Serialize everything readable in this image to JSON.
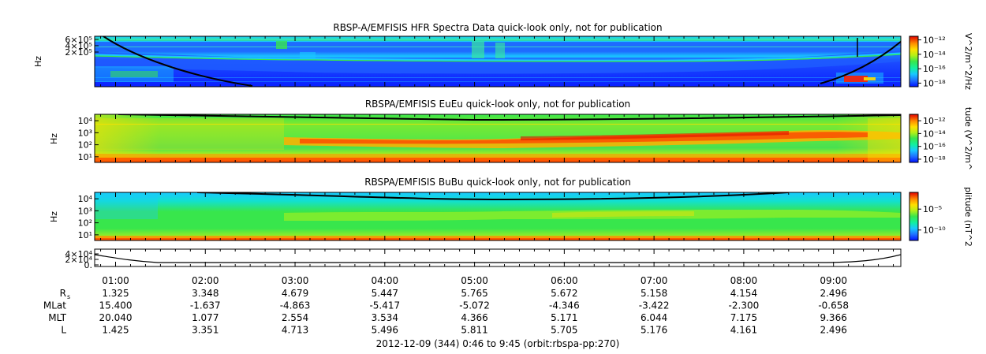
{
  "colors": {
    "background": "#ffffff",
    "axis": "#000000",
    "curve": "#000000",
    "colormap": [
      "#0010ff",
      "#1e6cff",
      "#19c8ff",
      "#12f0a0",
      "#38e64c",
      "#b4f018",
      "#ffe000",
      "#ff8c00",
      "#ff2000",
      "#c80000"
    ]
  },
  "chart_data": [
    {
      "type": "heatmap",
      "title": "RBSP-A/EMFISIS  HFR Spectra Data quick-look only, not for publication",
      "ylabel": "Hz",
      "ytick_labels": [
        "6×10⁵",
        "4×10⁵",
        "2×10⁵"
      ],
      "ytick_values": [
        600000,
        400000,
        200000
      ],
      "colorbar": {
        "label": "V^2/m^2/Hz",
        "tick_labels": [
          "10⁻¹²",
          "10⁻¹⁴",
          "10⁻¹⁶",
          "10⁻¹⁸"
        ],
        "ticks": [
          -12,
          -14,
          -16,
          -18
        ]
      }
    },
    {
      "type": "heatmap",
      "title": "RBSPA/EMFISIS  EuEu quick-look only, not for publication",
      "ylabel": "Hz",
      "ytick_labels": [
        "10⁴",
        "10³",
        "10²",
        "10¹"
      ],
      "ytick_values": [
        4,
        3,
        2,
        1
      ],
      "colorbar": {
        "label": "tude (V^2/m^",
        "tick_labels": [
          "10⁻¹²",
          "10⁻¹⁴",
          "10⁻¹⁶",
          "10⁻¹⁸"
        ],
        "ticks": [
          -12,
          -14,
          -16,
          -18
        ]
      }
    },
    {
      "type": "heatmap",
      "title": "RBSPA/EMFISIS  BuBu quick-look only, not for publication",
      "ylabel": "Hz",
      "ytick_labels": [
        "10⁴",
        "10³",
        "10²",
        "10¹"
      ],
      "ytick_values": [
        4,
        3,
        2,
        1
      ],
      "colorbar": {
        "label": "plitude (nT^2",
        "tick_labels": [
          "10⁻⁵",
          "10⁻¹⁰"
        ],
        "ticks": [
          -5,
          -10
        ]
      }
    },
    {
      "type": "line",
      "title": "",
      "ytick_labels": [
        "4×10⁴",
        "2×10⁴",
        "0."
      ],
      "ytick_values": [
        40000,
        20000,
        0
      ]
    }
  ],
  "time_axis": {
    "labels": [
      "01:00",
      "02:00",
      "03:00",
      "04:00",
      "05:00",
      "06:00",
      "07:00",
      "08:00",
      "09:00"
    ],
    "start_hours": 0.767,
    "end_hours": 9.75
  },
  "ephemeris": {
    "rows": [
      {
        "label": "R",
        "label_sub": "s",
        "values": [
          "1.325",
          "3.348",
          "4.679",
          "5.447",
          "5.765",
          "5.672",
          "5.158",
          "4.154",
          "2.496"
        ]
      },
      {
        "label": "MLat",
        "label_sub": "",
        "values": [
          "15.400",
          "-1.637",
          "-4.863",
          "-5.417",
          "-5.072",
          "-4.346",
          "-3.422",
          "-2.300",
          "-0.658"
        ]
      },
      {
        "label": "MLT",
        "label_sub": "",
        "values": [
          "20.040",
          "1.077",
          "2.554",
          "3.534",
          "4.366",
          "5.171",
          "6.044",
          "7.175",
          "9.366"
        ]
      },
      {
        "label": "L",
        "label_sub": "",
        "values": [
          "1.425",
          "3.351",
          "4.713",
          "5.496",
          "5.811",
          "5.705",
          "5.176",
          "4.161",
          "2.496"
        ]
      }
    ]
  },
  "footer": "2012-12-09 (344) 0:46 to 9:45 (orbit:rbspa-pp:270)"
}
